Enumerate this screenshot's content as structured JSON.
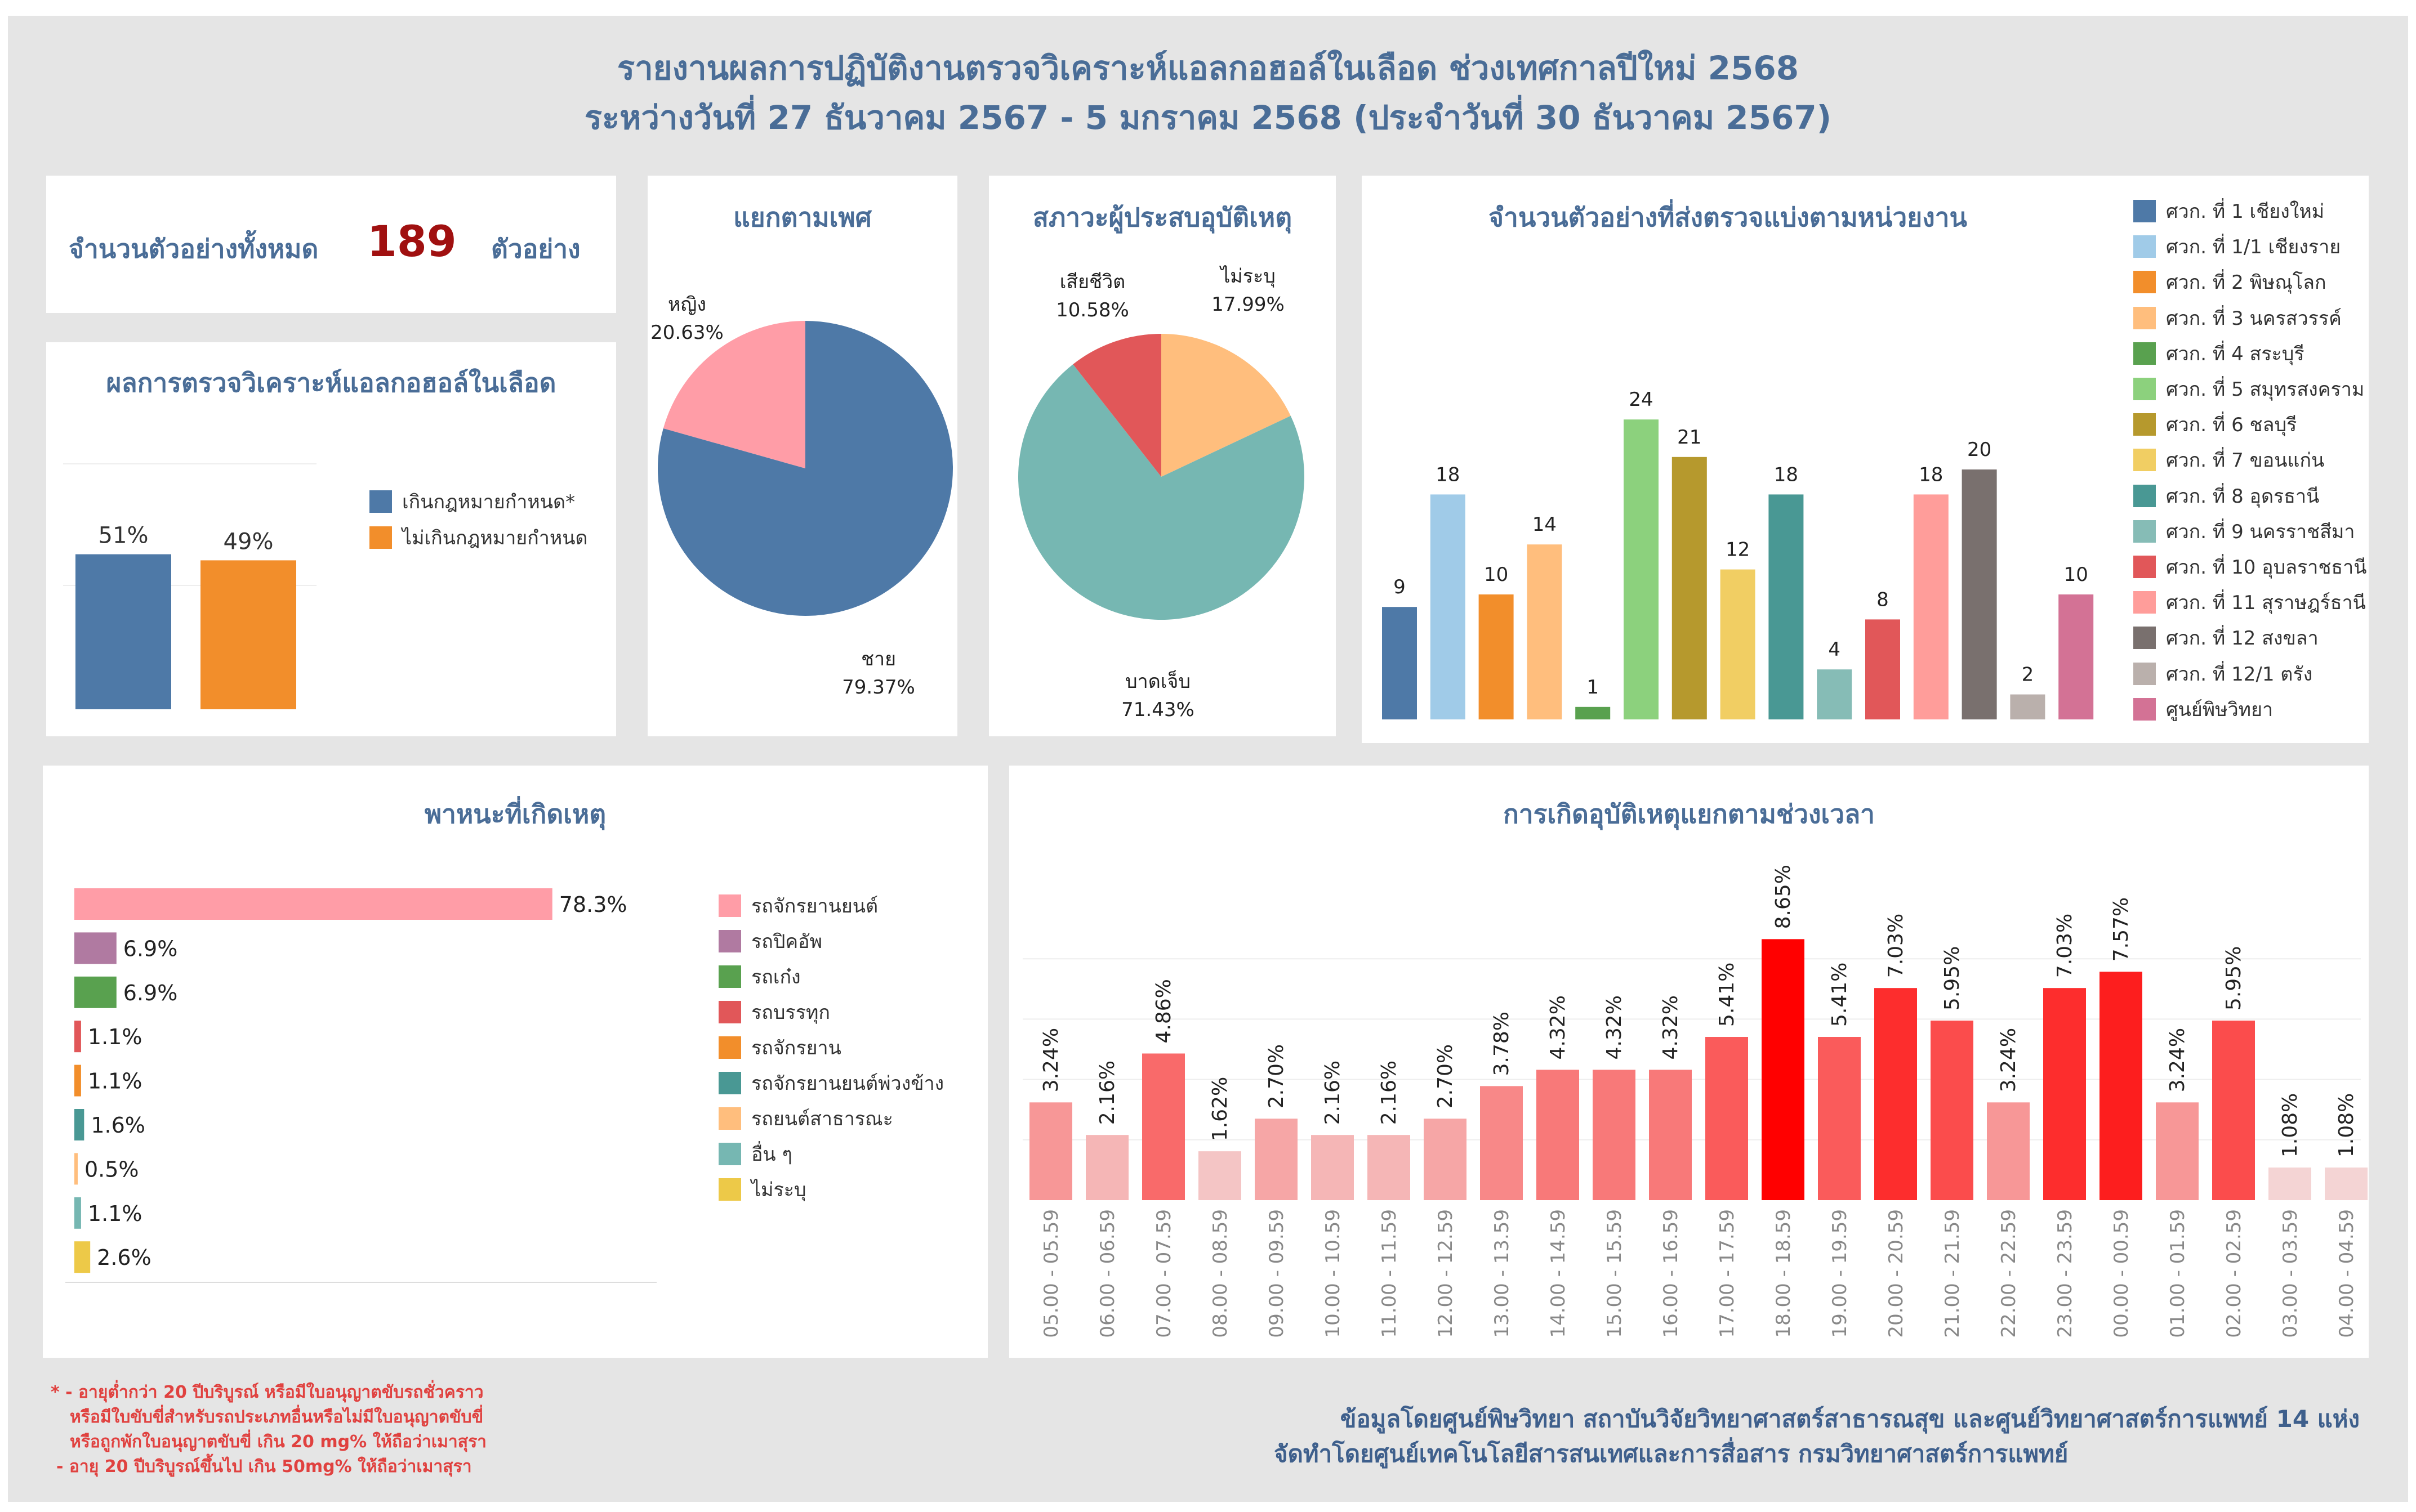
{
  "header": {
    "title_line1": "รายงานผลการปฏิบัติงานตรวจวิเคราะห์แอลกอฮอล์ในเลือด ช่วงเทศกาลปีใหม่ 2568",
    "title_line2": "ระหว่างวันที่ 27 ธันวาคม 2567 - 5 มกราคม 2568 (ประจำวันที่ 30 ธันวาคม 2567)"
  },
  "total": {
    "label": "จำนวนตัวอย่างทั้งหมด",
    "value": "189",
    "unit": "ตัวอย่าง"
  },
  "colors": {
    "title": "#4a6d97",
    "accent_red": "#a01010",
    "note_red": "#e0413f"
  },
  "chart_data": [
    {
      "id": "alcohol",
      "type": "bar",
      "title": "ผลการตรวจวิเคราะห์แอลกอฮอล์ในเลือด",
      "categories": [
        "เกินกฎหมายกำหนด*",
        "ไม่เกินกฎหมายกำหนด"
      ],
      "values": [
        51,
        49
      ],
      "labels": [
        "51%",
        "49%"
      ],
      "colors": [
        "#4e79a7",
        "#f28e2b"
      ],
      "ylim": [
        0,
        100
      ],
      "legend": "right"
    },
    {
      "id": "gender",
      "type": "pie",
      "title": "แยกตามเพศ",
      "categories": [
        "ชาย",
        "หญิง"
      ],
      "values": [
        79.37,
        20.63
      ],
      "labels": [
        "79.37%",
        "20.63%"
      ],
      "colors": [
        "#4e79a7",
        "#ff9da7"
      ]
    },
    {
      "id": "status",
      "type": "pie",
      "title": "สภาวะผู้ประสบอุบัติเหตุ",
      "categories": [
        "ไม่ระบุ",
        "บาดเจ็บ",
        "เสียชีวิต"
      ],
      "values": [
        17.99,
        71.43,
        10.58
      ],
      "labels": [
        "17.99%",
        "71.43%",
        "10.58%"
      ],
      "colors": [
        "#ffbe7d",
        "#76b7b2",
        "#e15759"
      ]
    },
    {
      "id": "units",
      "type": "bar",
      "title": "จำนวนตัวอย่างที่ส่งตรวจแบ่งตามหน่วยงาน",
      "categories": [
        "ศวก. ที่ 1 เชียงใหม่",
        "ศวก. ที่ 1/1 เชียงราย",
        "ศวก. ที่ 2 พิษณุโลก",
        "ศวก. ที่ 3 นครสวรรค์",
        "ศวก. ที่ 4 สระบุรี",
        "ศวก. ที่ 5 สมุทรสงคราม",
        "ศวก. ที่ 6 ชลบุรี",
        "ศวก. ที่ 7 ขอนแก่น",
        "ศวก. ที่ 8 อุดรธานี",
        "ศวก. ที่ 9 นครราชสีมา",
        "ศวก. ที่ 10 อุบลราชธานี",
        "ศวก. ที่ 11 สุราษฎร์ธานี",
        "ศวก. ที่ 12 สงขลา",
        "ศวก. ที่ 12/1 ตรัง",
        "ศูนย์พิษวิทยา"
      ],
      "values": [
        9,
        18,
        10,
        14,
        1,
        24,
        21,
        12,
        18,
        4,
        8,
        18,
        20,
        2,
        10
      ],
      "labels": [
        "9",
        "18",
        "10",
        "14",
        "1",
        "24",
        "21",
        "12",
        "18",
        "4",
        "8",
        "18",
        "20",
        "2",
        "10"
      ],
      "colors": [
        "#4e79a7",
        "#a0cbe8",
        "#f28e2b",
        "#ffbe7d",
        "#59a14f",
        "#8cd17d",
        "#b6992d",
        "#f1ce63",
        "#499894",
        "#86bcb6",
        "#e15759",
        "#ff9d9a",
        "#79706e",
        "#bab0ac",
        "#d37295"
      ],
      "ylim": [
        0,
        26
      ],
      "legend": "right"
    },
    {
      "id": "vehicle",
      "type": "bar",
      "orientation": "horizontal",
      "title": "พาหนะที่เกิดเหตุ",
      "categories": [
        "รถจักรยานยนต์",
        "รถปิคอัพ",
        "รถเก๋ง",
        "รถบรรทุก",
        "รถจักรยาน",
        "รถจักรยานยนต์พ่วงข้าง",
        "รถยนต์สาธารณะ",
        "อื่น ๆ",
        "ไม่ระบุ"
      ],
      "values": [
        78.3,
        6.9,
        6.9,
        1.1,
        1.1,
        1.6,
        0.5,
        1.1,
        2.6
      ],
      "labels": [
        "78.3%",
        "6.9%",
        "6.9%",
        "1.1%",
        "1.1%",
        "1.6%",
        "0.5%",
        "1.1%",
        "2.6%"
      ],
      "colors": [
        "#ff9da7",
        "#b07aa1",
        "#59a14f",
        "#e15759",
        "#f28e2b",
        "#499894",
        "#ffbe7d",
        "#76b7b2",
        "#edc948"
      ],
      "xlim": [
        0,
        100
      ],
      "legend": "right"
    },
    {
      "id": "time",
      "type": "bar",
      "title": "การเกิดอุบัติเหตุแยกตามช่วงเวลา",
      "categories": [
        "05.00 - 05.59",
        "06.00 - 06.59",
        "07.00 - 07.59",
        "08.00 - 08.59",
        "09.00 - 09.59",
        "10.00 - 10.59",
        "11.00 - 11.59",
        "12.00 - 12.59",
        "13.00 - 13.59",
        "14.00 - 14.59",
        "15.00 - 15.59",
        "16.00 - 16.59",
        "17.00 - 17.59",
        "18.00 - 18.59",
        "19.00 - 19.59",
        "20.00 - 20.59",
        "21.00 - 21.59",
        "22.00 - 22.59",
        "23.00 - 23.59",
        "00.00 - 00.59",
        "01.00 - 01.59",
        "02.00 - 02.59",
        "03.00 - 03.59",
        "04.00 - 04.59"
      ],
      "values": [
        3.24,
        2.16,
        4.86,
        1.62,
        2.7,
        2.16,
        2.16,
        2.7,
        3.78,
        4.32,
        4.32,
        4.32,
        5.41,
        8.65,
        5.41,
        7.03,
        5.95,
        3.24,
        7.03,
        7.57,
        3.24,
        5.95,
        1.08,
        1.08
      ],
      "labels": [
        "3.24%",
        "2.16%",
        "4.86%",
        "1.62%",
        "2.70%",
        "2.16%",
        "2.16%",
        "2.70%",
        "3.78%",
        "4.32%",
        "4.32%",
        "4.32%",
        "5.41%",
        "8.65%",
        "5.41%",
        "7.03%",
        "5.95%",
        "3.24%",
        "7.03%",
        "7.57%",
        "3.24%",
        "5.95%",
        "1.08%",
        "1.08%"
      ],
      "color_scale": [
        "#f2f2f2",
        "#ff0000"
      ],
      "ylim": [
        0,
        10
      ],
      "grid": true
    }
  ],
  "notes": {
    "line1": "* - อายุต่ำกว่า 20 ปีบริบูรณ์ หรือมีใบอนุญาตขับรถชั่วคราว",
    "line2": "หรือมีใบขับขี่สำหรับรถประเภทอื่นหรือไม่มีใบอนุญาตขับขี่",
    "line3": "หรือถูกพักใบอนุญาตขับขี่ เกิน 20 mg% ให้ถือว่าเมาสุรา",
    "line4": "- อายุ 20 ปีบริบูรณ์ขึ้นไป เกิน 50mg% ให้ถือว่าเมาสุรา"
  },
  "credits": {
    "line1": "ข้อมูลโดยศูนย์พิษวิทยา สถาบันวิจัยวิทยาศาสตร์สาธารณสุข และศูนย์วิทยาศาสตร์การแพทย์ 14 แห่ง",
    "line2": "จัดทำโดยศูนย์เทคโนโลยีสารสนเทศและการสื่อสาร กรมวิทยาศาสตร์การแพทย์"
  }
}
